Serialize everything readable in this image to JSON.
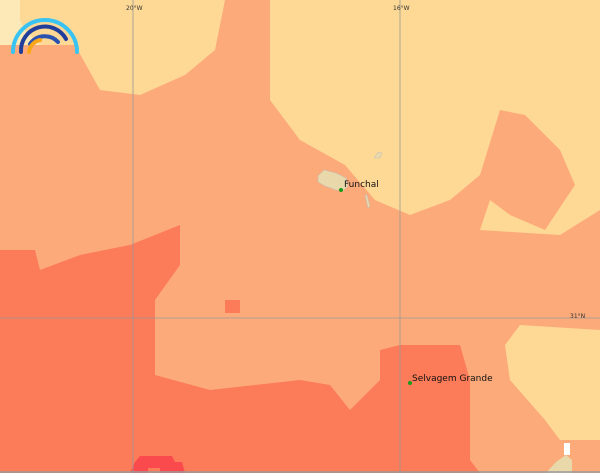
{
  "map": {
    "colors": {
      "pale": "#fdd995",
      "palest": "#fde9b8",
      "light": "#fdaa7b",
      "medium": "#fc7b58",
      "high": "#fb4a4d",
      "land": "#e9d9aa",
      "grid": "#999999",
      "place_marker": "#1a9a1a"
    },
    "graticule": {
      "lon_labels": [
        "20°W",
        "16°W"
      ],
      "lat_labels": [
        "31°N"
      ]
    },
    "places": [
      {
        "name": "Funchal"
      },
      {
        "name": "Selvagem Grande"
      }
    ]
  },
  "logo": {
    "icon": "rainbow-arcs-logo-icon"
  }
}
